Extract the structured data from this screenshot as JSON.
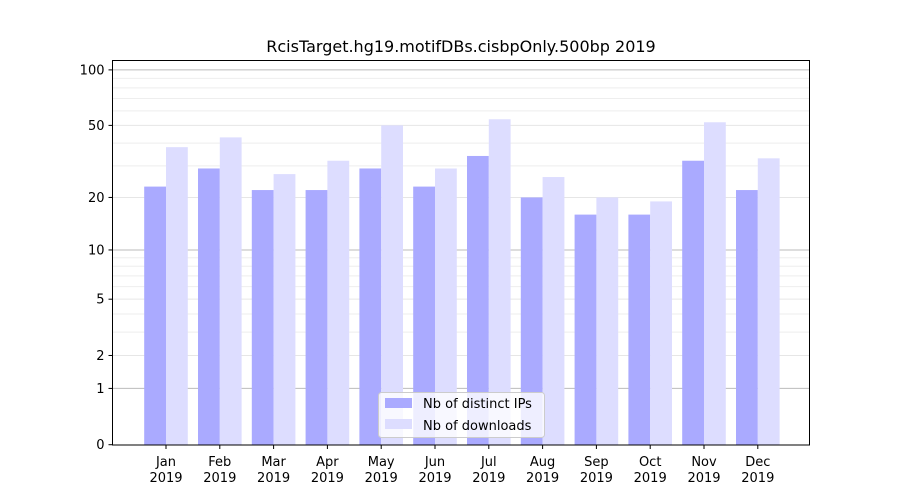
{
  "chart_data": {
    "type": "bar",
    "title": "RcisTarget.hg19.motifDBs.cisbpOnly.500bp 2019",
    "xlabel": "",
    "ylabel": "",
    "yscale": "log(1+y)",
    "ylim": [
      0,
      116
    ],
    "grid": true,
    "legend_position": "bottom-center",
    "categories": [
      "Jan\n2019",
      "Feb\n2019",
      "Mar\n2019",
      "Apr\n2019",
      "May\n2019",
      "Jun\n2019",
      "Jul\n2019",
      "Aug\n2019",
      "Sep\n2019",
      "Oct\n2019",
      "Nov\n2019",
      "Dec\n2019"
    ],
    "month_labels": [
      "Jan",
      "Feb",
      "Mar",
      "Apr",
      "May",
      "Jun",
      "Jul",
      "Aug",
      "Sep",
      "Oct",
      "Nov",
      "Dec"
    ],
    "year_label": "2019",
    "yticks": [
      0,
      1,
      2,
      5,
      10,
      20,
      50,
      100
    ],
    "ytick_labels": [
      "0",
      "1",
      "2",
      "5",
      "10",
      "20",
      "50",
      "100"
    ],
    "series": [
      {
        "name": "Nb of distinct IPs",
        "color": "#aaaaff",
        "values": [
          23,
          29,
          22,
          22,
          29,
          23,
          34,
          20,
          16,
          16,
          32,
          22
        ]
      },
      {
        "name": "Nb of downloads",
        "color": "#ddddff",
        "values": [
          38,
          43,
          27,
          32,
          50,
          29,
          54,
          26,
          20,
          19,
          52,
          33
        ]
      }
    ]
  }
}
